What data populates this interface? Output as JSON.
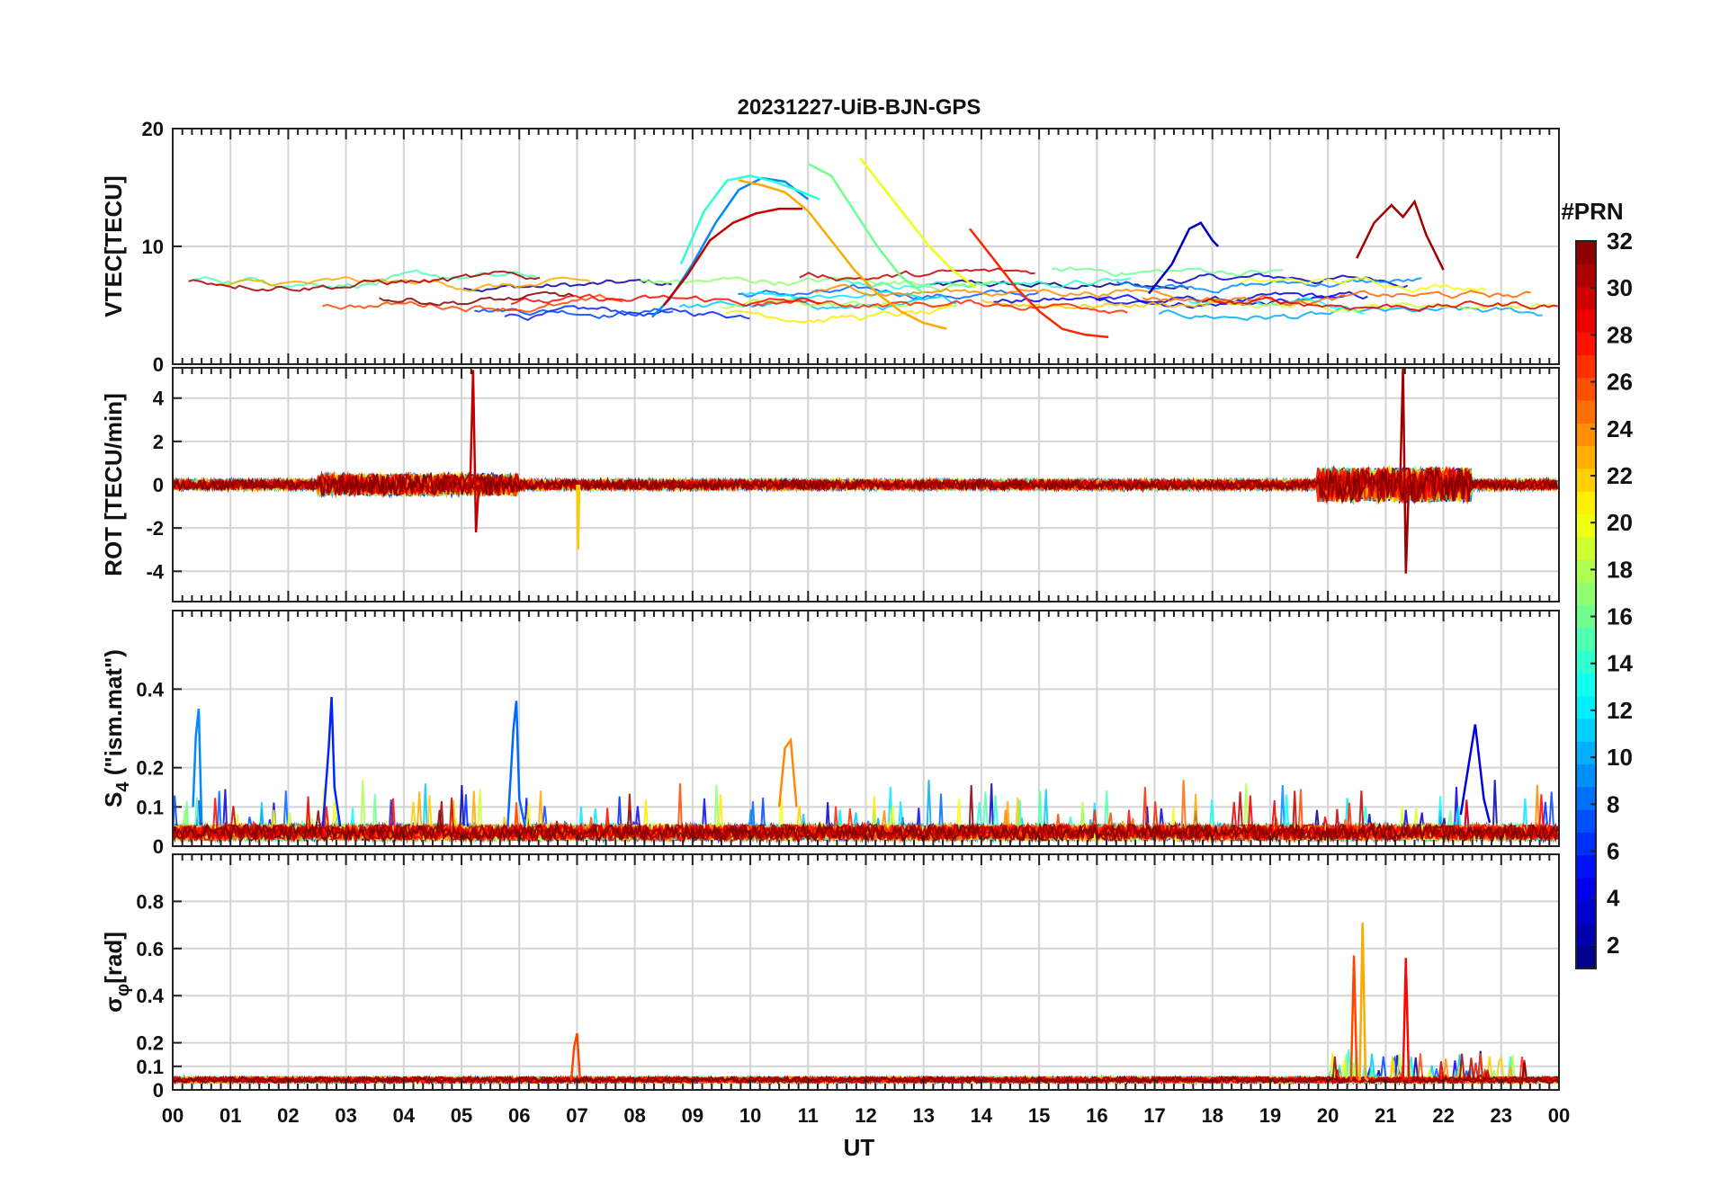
{
  "chart_data": {
    "type": "line",
    "title": "20231227-UiB-BJN-GPS",
    "xlabel": "UT",
    "x_range": [
      0,
      24
    ],
    "x_tick_labels": [
      "00",
      "01",
      "02",
      "03",
      "04",
      "05",
      "06",
      "07",
      "08",
      "09",
      "10",
      "11",
      "12",
      "13",
      "14",
      "15",
      "16",
      "17",
      "18",
      "19",
      "20",
      "21",
      "22",
      "23",
      "00"
    ],
    "grid": true,
    "colorbar": {
      "title": "#PRN",
      "range": [
        1,
        32
      ],
      "colormap": "jet",
      "levels": 32,
      "tick_labels": [
        "2",
        "4",
        "6",
        "8",
        "10",
        "12",
        "14",
        "16",
        "18",
        "20",
        "22",
        "24",
        "26",
        "28",
        "30",
        "32"
      ]
    },
    "panels": [
      {
        "id": "vtec",
        "ylabel": "VTEC[TECU]",
        "ylim": [
          0,
          20
        ],
        "y_ticks": [
          0,
          10,
          20
        ],
        "y_tick_labels": [
          "0",
          "10",
          "20"
        ],
        "series": [
          {
            "prn": 3,
            "x": [
              16.9,
              17.3,
              17.6,
              17.8,
              18.0,
              18.1
            ],
            "y": [
              6.0,
              8.5,
              11.5,
              12.0,
              10.5,
              10.0
            ]
          },
          {
            "prn": 9,
            "x": [
              8.3,
              8.6,
              9.0,
              9.4,
              9.8,
              10.2,
              10.6,
              11.0
            ],
            "y": [
              4.0,
              5.5,
              8.5,
              12.0,
              14.8,
              15.8,
              15.5,
              14.0
            ]
          },
          {
            "prn": 14,
            "x": [
              8.8,
              9.2,
              9.6,
              10.0,
              10.4,
              10.8,
              11.2
            ],
            "y": [
              8.5,
              13.0,
              15.6,
              16.0,
              15.5,
              14.8,
              14.0
            ]
          },
          {
            "prn": 16,
            "x": [
              11.0,
              11.4,
              11.8,
              12.2,
              12.6,
              13.0
            ],
            "y": [
              17.0,
              16.0,
              13.0,
              10.0,
              7.5,
              6.0
            ]
          },
          {
            "prn": 20,
            "x": [
              11.9,
              12.3,
              12.7,
              13.1,
              13.5,
              13.9
            ],
            "y": [
              17.5,
              15.0,
              12.5,
              10.0,
              8.0,
              6.5
            ]
          },
          {
            "prn": 23,
            "x": [
              9.8,
              10.2,
              10.6,
              11.0,
              11.4,
              11.8,
              12.2,
              12.6,
              13.0,
              13.4
            ],
            "y": [
              15.6,
              15.2,
              14.6,
              13.0,
              10.5,
              8.0,
              6.0,
              4.5,
              3.5,
              3.0
            ]
          },
          {
            "prn": 30,
            "x": [
              8.5,
              8.9,
              9.3,
              9.7,
              10.1,
              10.5,
              10.9
            ],
            "y": [
              5.0,
              7.5,
              10.5,
              12.0,
              12.8,
              13.2,
              13.2
            ]
          },
          {
            "prn": 27,
            "x": [
              13.8,
              14.2,
              14.6,
              15.0,
              15.4,
              15.8,
              16.2
            ],
            "y": [
              11.5,
              9.0,
              6.5,
              4.5,
              3.0,
              2.5,
              2.3
            ]
          },
          {
            "prn": 31,
            "x": [
              20.5,
              20.8,
              21.1,
              21.3,
              21.5,
              21.7,
              22.0
            ],
            "y": [
              9.0,
              12.0,
              13.5,
              12.5,
              13.8,
              11.0,
              8.0
            ]
          }
        ]
      },
      {
        "id": "rot",
        "ylabel": "ROT [TECU/min]",
        "ylim": [
          -5.4,
          5.4
        ],
        "y_ticks": [
          -4,
          -2,
          0,
          2,
          4
        ],
        "y_tick_labels": [
          "-4",
          "-2",
          "0",
          "2",
          "4"
        ],
        "series": [
          {
            "prn": 30,
            "x": [
              5.15,
              5.2,
              5.25,
              5.3
            ],
            "y": [
              0.0,
              5.3,
              -2.2,
              0.0
            ]
          },
          {
            "prn": 31,
            "x": [
              21.25,
              21.3,
              21.35,
              21.4
            ],
            "y": [
              0.0,
              5.4,
              -4.1,
              0.0
            ]
          },
          {
            "prn": 22,
            "x": [
              7.0,
              7.02,
              7.04
            ],
            "y": [
              0.0,
              -3.0,
              0.0
            ]
          }
        ]
      },
      {
        "id": "s4",
        "ylabel": "S",
        "ylabel_sub": "4",
        "ylabel_rest": " (\"ism.mat\")",
        "ylim": [
          0,
          0.6
        ],
        "y_ticks": [
          0,
          0.1,
          0.2,
          0.4
        ],
        "y_tick_labels": [
          "0",
          "0.1",
          "0.2",
          "0.4"
        ],
        "series": [
          {
            "prn": 6,
            "x": [
              2.6,
              2.7,
              2.75,
              2.8,
              2.9
            ],
            "y": [
              0.05,
              0.25,
              0.38,
              0.15,
              0.05
            ]
          },
          {
            "prn": 8,
            "x": [
              5.8,
              5.9,
              5.95,
              6.0,
              6.1
            ],
            "y": [
              0.05,
              0.3,
              0.37,
              0.12,
              0.05
            ]
          },
          {
            "prn": 9,
            "x": [
              0.35,
              0.4,
              0.45,
              0.5
            ],
            "y": [
              0.1,
              0.28,
              0.35,
              0.06
            ]
          },
          {
            "prn": 4,
            "x": [
              22.3,
              22.45,
              22.55,
              22.7,
              22.8
            ],
            "y": [
              0.08,
              0.22,
              0.31,
              0.12,
              0.06
            ]
          },
          {
            "prn": 24,
            "x": [
              10.5,
              10.6,
              10.7,
              10.8
            ],
            "y": [
              0.1,
              0.25,
              0.27,
              0.1
            ]
          }
        ]
      },
      {
        "id": "sigma",
        "ylabel": "σ",
        "ylabel_sub": "φ",
        "ylabel_rest": "[rad]",
        "ylim": [
          0,
          1.0
        ],
        "y_ticks": [
          0,
          0.1,
          0.2,
          0.4,
          0.6,
          0.8
        ],
        "y_tick_labels": [
          "0",
          "0.1",
          "0.2",
          "0.4",
          "0.6",
          "0.8"
        ],
        "series": [
          {
            "prn": 26,
            "x": [
              20.4,
              20.45,
              20.5,
              20.55
            ],
            "y": [
              0.04,
              0.57,
              0.05,
              0.04
            ]
          },
          {
            "prn": 23,
            "x": [
              20.55,
              20.6,
              20.65,
              20.7
            ],
            "y": [
              0.04,
              0.71,
              0.05,
              0.04
            ]
          },
          {
            "prn": 28,
            "x": [
              21.3,
              21.35,
              21.4,
              21.45
            ],
            "y": [
              0.04,
              0.56,
              0.04,
              0.04
            ]
          },
          {
            "prn": 26,
            "x": [
              6.9,
              6.95,
              7.0,
              7.05
            ],
            "y": [
              0.04,
              0.18,
              0.24,
              0.05
            ]
          }
        ]
      }
    ]
  }
}
